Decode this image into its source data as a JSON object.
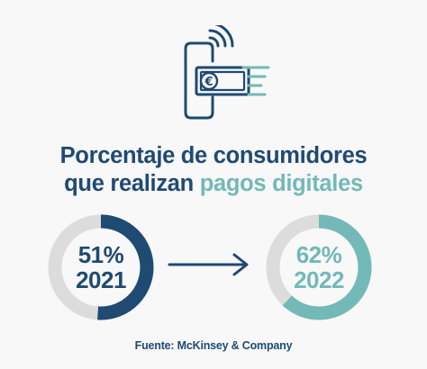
{
  "header_icon": "contactless-euro-payment-icon",
  "title": {
    "line1": "Porcentaje de consumidores",
    "line2_part1": "que realizan ",
    "line2_part2": "pagos digitales"
  },
  "colors": {
    "navy": "#1f4a72",
    "teal": "#72b9b7",
    "track": "#dcdcdc",
    "background": "#f8f8f8"
  },
  "chart_data": {
    "type": "pie",
    "categories": [
      "2021",
      "2022"
    ],
    "values": [
      51,
      62
    ],
    "unit": "%",
    "items": [
      {
        "year": "2021",
        "value": 51,
        "label": "51%",
        "color": "#1f4a72"
      },
      {
        "year": "2022",
        "value": 62,
        "label": "62%",
        "color": "#72b9b7"
      }
    ]
  },
  "source": "Fuente: McKinsey & Company"
}
